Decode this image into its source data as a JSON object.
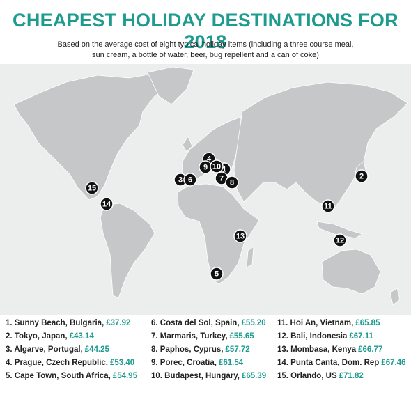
{
  "header": {
    "title": "CHEAPEST HOLIDAY DESTINATIONS FOR 2018",
    "subtitle": [
      "Based on the average cost of eight typical holiday items (including a three course meal,",
      "sun cream, a bottle of water, beer, bug repellent and a can of coke)"
    ]
  },
  "markers": [
    "1",
    "2",
    "3",
    "4",
    "5",
    "6",
    "7",
    "8",
    "9",
    "10",
    "11",
    "12",
    "13",
    "14",
    "15"
  ],
  "list": [
    {
      "label": "1. Sunny Beach, Bulgaria,",
      "price": "£37.92"
    },
    {
      "label": "2. Tokyo, Japan,",
      "price": "£43.14"
    },
    {
      "label": "3. Algarve, Portugal,",
      "price": "£44.25"
    },
    {
      "label": "4. Prague, Czech Republic,",
      "price": "£53.40"
    },
    {
      "label": "5. Cape Town, South Africa,",
      "price": "£54.95"
    },
    {
      "label": "6. Costa del Sol, Spain,",
      "price": "£55.20"
    },
    {
      "label": "7. Marmaris, Turkey,",
      "price": "£55.65"
    },
    {
      "label": "8. Paphos, Cyprus,",
      "price": "£57.72"
    },
    {
      "label": "9. Porec, Croatia,",
      "price": "£61.54"
    },
    {
      "label": "10. Budapest, Hungary,",
      "price": "£65.39"
    },
    {
      "label": "11. Hoi An, Vietnam,",
      "price": "£65.85"
    },
    {
      "label": "12. Bali, Indonesia",
      "price": "£67.11"
    },
    {
      "label": "13. Mombasa, Kenya",
      "price": "£66.77"
    },
    {
      "label": "14. Punta Canta, Dom. Rep",
      "price": "£67.46"
    },
    {
      "label": "15. Orlando, US",
      "price": "£71.82"
    }
  ]
}
